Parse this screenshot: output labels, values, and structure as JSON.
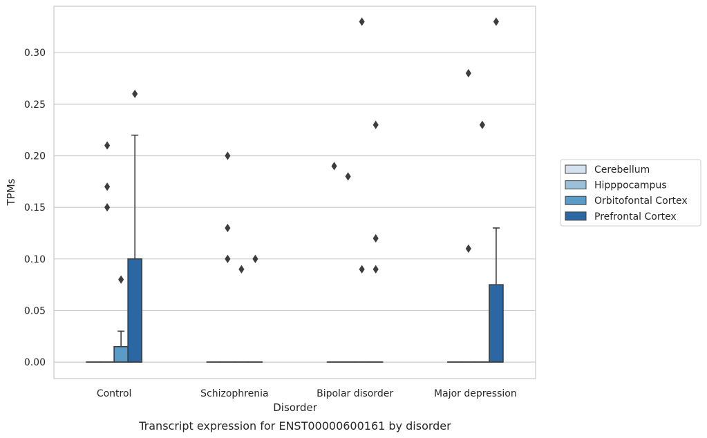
{
  "chart_data": {
    "type": "box",
    "xlabel": "Disorder",
    "ylabel": "TPMs",
    "caption": "Transcript expression for ENST00000600161 by disorder",
    "categories": [
      "Control",
      "Schizophrenia",
      "Bipolar disorder",
      "Major depression"
    ],
    "ylim": [
      -0.016,
      0.345
    ],
    "yticks": [
      0.0,
      0.05,
      0.1,
      0.15,
      0.2,
      0.25,
      0.3
    ],
    "ytick_labels": [
      "0.00",
      "0.05",
      "0.10",
      "0.15",
      "0.20",
      "0.25",
      "0.30"
    ],
    "grid": "horizontal",
    "legend_position": "right",
    "series": [
      {
        "name": "Cerebellum",
        "color": "#d4e2f0",
        "boxes": [
          {
            "q1": 0,
            "median": 0,
            "q3": 0,
            "whisker_low": 0,
            "whisker_high": 0,
            "outliers": []
          },
          {
            "q1": 0,
            "median": 0,
            "q3": 0,
            "whisker_low": 0,
            "whisker_high": 0,
            "outliers": []
          },
          {
            "q1": 0,
            "median": 0,
            "q3": 0,
            "whisker_low": 0,
            "whisker_high": 0,
            "outliers": [
              0.19
            ]
          },
          {
            "q1": 0,
            "median": 0,
            "q3": 0,
            "whisker_low": 0,
            "whisker_high": 0,
            "outliers": []
          }
        ]
      },
      {
        "name": "Hipppocampus",
        "color": "#9ac0da",
        "boxes": [
          {
            "q1": 0,
            "median": 0,
            "q3": 0,
            "whisker_low": 0,
            "whisker_high": 0,
            "outliers": [
              0.21,
              0.17,
              0.15
            ]
          },
          {
            "q1": 0,
            "median": 0,
            "q3": 0,
            "whisker_low": 0,
            "whisker_high": 0,
            "outliers": [
              0.2,
              0.13,
              0.1
            ]
          },
          {
            "q1": 0,
            "median": 0,
            "q3": 0,
            "whisker_low": 0,
            "whisker_high": 0,
            "outliers": [
              0.18
            ]
          },
          {
            "q1": 0,
            "median": 0,
            "q3": 0,
            "whisker_low": 0,
            "whisker_high": 0,
            "outliers": [
              0.28,
              0.11
            ]
          }
        ]
      },
      {
        "name": "Orbitofontal Cortex",
        "color": "#5a9bc8",
        "boxes": [
          {
            "q1": 0,
            "median": 0,
            "q3": 0.015,
            "whisker_low": 0,
            "whisker_high": 0.03,
            "outliers": [
              0.08
            ]
          },
          {
            "q1": 0,
            "median": 0,
            "q3": 0,
            "whisker_low": 0,
            "whisker_high": 0,
            "outliers": [
              0.09
            ]
          },
          {
            "q1": 0,
            "median": 0,
            "q3": 0,
            "whisker_low": 0,
            "whisker_high": 0,
            "outliers": [
              0.33,
              0.09
            ]
          },
          {
            "q1": 0,
            "median": 0,
            "q3": 0,
            "whisker_low": 0,
            "whisker_high": 0,
            "outliers": [
              0.23
            ]
          }
        ]
      },
      {
        "name": "Prefrontal Cortex",
        "color": "#2b67a3",
        "boxes": [
          {
            "q1": 0,
            "median": 0,
            "q3": 0.1,
            "whisker_low": 0,
            "whisker_high": 0.22,
            "outliers": [
              0.26
            ]
          },
          {
            "q1": 0,
            "median": 0,
            "q3": 0,
            "whisker_low": 0,
            "whisker_high": 0,
            "outliers": [
              0.1
            ]
          },
          {
            "q1": 0,
            "median": 0,
            "q3": 0,
            "whisker_low": 0,
            "whisker_high": 0,
            "outliers": [
              0.23,
              0.12,
              0.09
            ]
          },
          {
            "q1": 0,
            "median": 0,
            "q3": 0.075,
            "whisker_low": 0,
            "whisker_high": 0.13,
            "outliers": [
              0.33
            ]
          }
        ]
      }
    ]
  }
}
